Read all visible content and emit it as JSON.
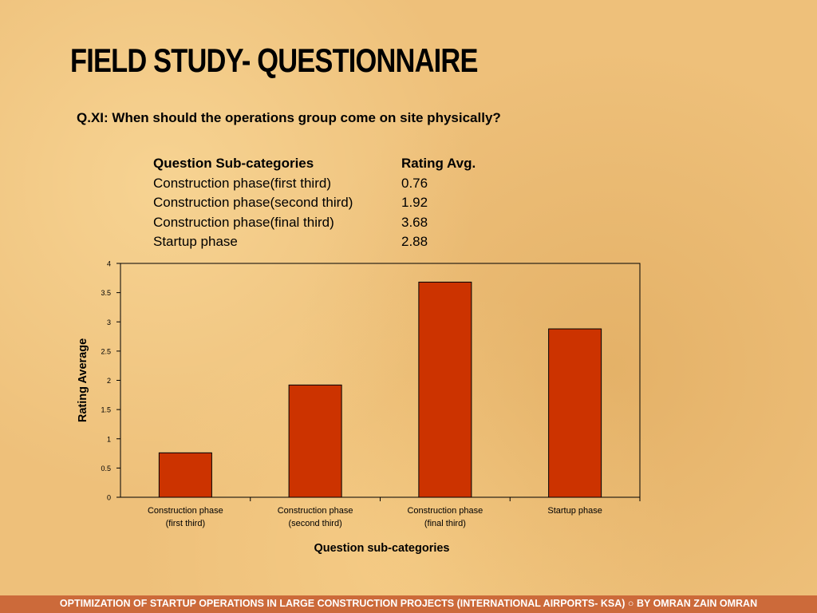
{
  "slide": {
    "title": "FIELD STUDY- QUESTIONNAIRE",
    "question": "Q.XI: When should the operations group come on site physically?"
  },
  "ratings_table": {
    "headers": [
      "Question Sub-categories",
      "Rating Avg."
    ],
    "rows": [
      [
        "Construction phase(first third)",
        "0.76"
      ],
      [
        "Construction phase(second third)",
        "1.92"
      ],
      [
        "Construction phase(final third)",
        "3.68"
      ],
      [
        "Startup phase",
        "2.88"
      ]
    ]
  },
  "chart_data": {
    "type": "bar",
    "categories": [
      [
        "Construction phase",
        "(first third)"
      ],
      [
        "Construction phase",
        "(second third)"
      ],
      [
        "Construction phase",
        "(final third)"
      ],
      [
        "Startup phase"
      ]
    ],
    "values": [
      0.76,
      1.92,
      3.68,
      2.88
    ],
    "ylabel": "Rating Average",
    "xlabel": "Question sub-categories",
    "ylim": [
      0,
      4
    ],
    "yticks": [
      "0",
      "0.5",
      "1",
      "1.5",
      "2",
      "2.5",
      "3",
      "3.5",
      "4"
    ],
    "bar_color": "#cc3300",
    "grid": false,
    "legend": "none"
  },
  "footer": {
    "text": "OPTIMIZATION OF STARTUP OPERATIONS IN LARGE CONSTRUCTION  PROJECTS (INTERNATIONAL AIRPORTS- KSA) ○ BY OMRAN ZAIN OMRAN",
    "background": "#cc6a3a"
  }
}
